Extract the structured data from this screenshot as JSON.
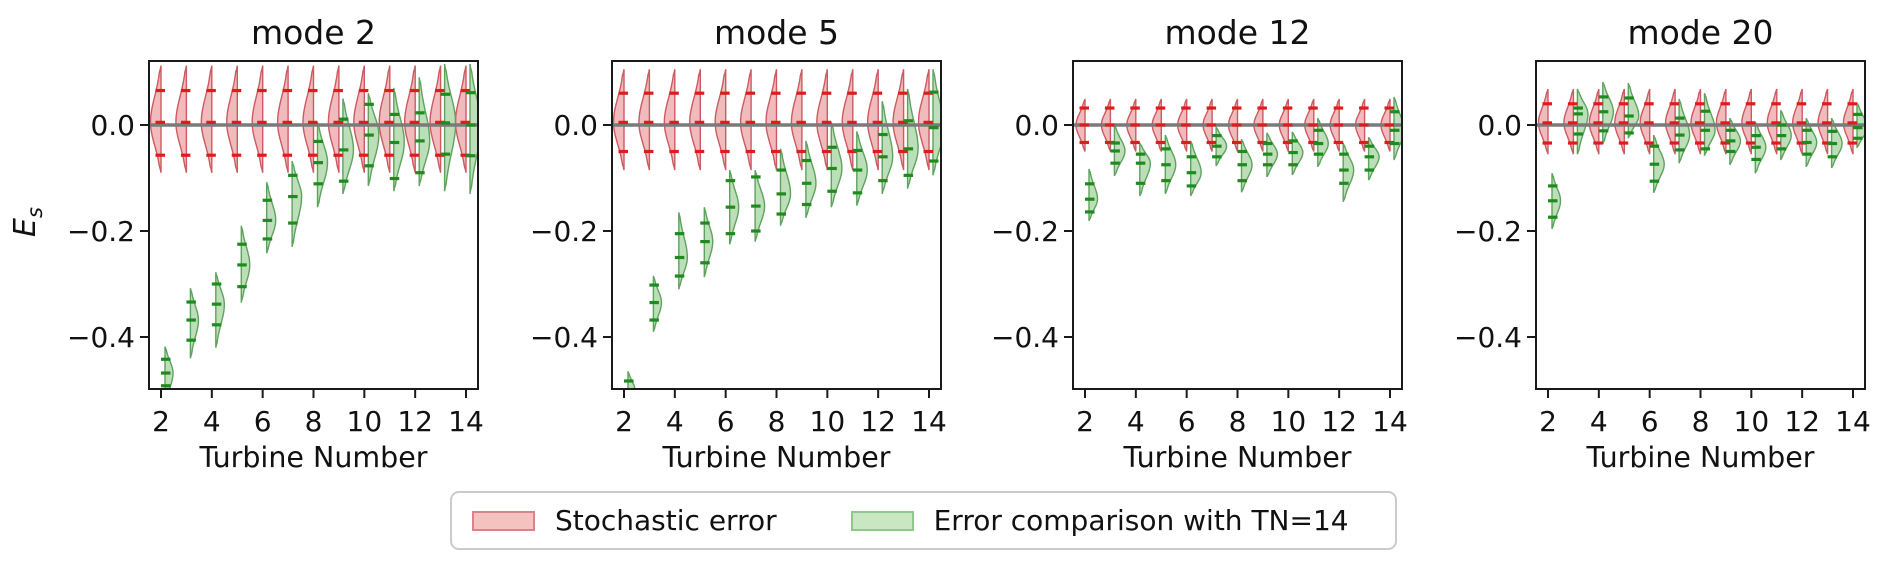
{
  "figure": {
    "background": "#ffffff",
    "ylabel_base": "E",
    "ylabel_sub": "s"
  },
  "chart_data": {
    "type": "violin",
    "xlabel": "Turbine Number",
    "ylabel": "E_s",
    "x_ticks": [
      2,
      4,
      6,
      8,
      10,
      12,
      14
    ],
    "y_ticks": [
      0.0,
      -0.2,
      -0.4
    ],
    "xlim": [
      1.5,
      14.5
    ],
    "ylim": [
      -0.498,
      0.121
    ],
    "grid": false,
    "zero_line": 0.0,
    "legend": {
      "position": "lower center",
      "items": [
        {
          "label": "Stochastic error",
          "fill": "#f5c2c2",
          "edge": "#dc8288"
        },
        {
          "label": "Error comparison with TN=14",
          "fill": "#c9e7c2",
          "edge": "#8cc98a"
        }
      ]
    },
    "colors": {
      "red_fill": "rgba(222,90,96,0.42)",
      "red_edge": "#cc5a60",
      "red_dash": "#dd1c1c",
      "green_fill": "rgba(106,183,100,0.45)",
      "green_edge": "#5da35c",
      "green_dash": "#1f8b1f",
      "zero_line": "#7a7a7a",
      "frame": "#1a1a1a",
      "text": "#111111"
    },
    "turbine_numbers": [
      2,
      3,
      4,
      5,
      6,
      7,
      8,
      9,
      10,
      11,
      12,
      13,
      14
    ],
    "subplots": [
      {
        "title": "mode 2",
        "red": {
          "lo": -0.09,
          "hi": 0.112,
          "q1": -0.057,
          "med": 0.005,
          "q3": 0.065,
          "w": 10.5
        },
        "green": [
          {
            "tn": 2,
            "lo": -0.53,
            "hi": -0.418,
            "q1": -0.492,
            "med": -0.468,
            "q3": -0.442,
            "w": 8
          },
          {
            "tn": 3,
            "lo": -0.44,
            "hi": -0.308,
            "q1": -0.406,
            "med": -0.368,
            "q3": -0.334,
            "w": 8
          },
          {
            "tn": 4,
            "lo": -0.42,
            "hi": -0.278,
            "q1": -0.377,
            "med": -0.338,
            "q3": -0.3,
            "w": 8.5
          },
          {
            "tn": 5,
            "lo": -0.335,
            "hi": -0.19,
            "q1": -0.305,
            "med": -0.264,
            "q3": -0.225,
            "w": 8.5
          },
          {
            "tn": 6,
            "lo": -0.242,
            "hi": -0.108,
            "q1": -0.215,
            "med": -0.18,
            "q3": -0.142,
            "w": 9
          },
          {
            "tn": 7,
            "lo": -0.23,
            "hi": -0.068,
            "q1": -0.185,
            "med": -0.135,
            "q3": -0.095,
            "w": 9.5
          },
          {
            "tn": 8,
            "lo": -0.155,
            "hi": 0.005,
            "q1": -0.111,
            "med": -0.071,
            "q3": -0.031,
            "w": 10
          },
          {
            "tn": 9,
            "lo": -0.13,
            "hi": 0.05,
            "q1": -0.106,
            "med": -0.047,
            "q3": 0.011,
            "w": 10.5
          },
          {
            "tn": 10,
            "lo": -0.115,
            "hi": 0.06,
            "q1": -0.077,
            "med": -0.019,
            "q3": 0.039,
            "w": 10.5
          },
          {
            "tn": 11,
            "lo": -0.125,
            "hi": 0.07,
            "q1": -0.101,
            "med": -0.033,
            "q3": 0.02,
            "w": 10.5
          },
          {
            "tn": 12,
            "lo": -0.115,
            "hi": 0.09,
            "q1": -0.09,
            "med": -0.03,
            "q3": 0.023,
            "w": 10.5
          },
          {
            "tn": 13,
            "lo": -0.125,
            "hi": 0.115,
            "q1": -0.055,
            "med": 0.004,
            "q3": 0.058,
            "w": 11
          },
          {
            "tn": 14,
            "lo": -0.13,
            "hi": 0.115,
            "q1": -0.058,
            "med": 0.0,
            "q3": 0.061,
            "w": 11
          }
        ]
      },
      {
        "title": "mode 5",
        "red": {
          "lo": -0.085,
          "hi": 0.105,
          "q1": -0.05,
          "med": 0.005,
          "q3": 0.06,
          "w": 10.5
        },
        "green": [
          {
            "tn": 2,
            "lo": -0.55,
            "hi": -0.465,
            "q1": -0.52,
            "med": -0.5,
            "q3": -0.483,
            "w": 7
          },
          {
            "tn": 3,
            "lo": -0.39,
            "hi": -0.285,
            "q1": -0.368,
            "med": -0.335,
            "q3": -0.302,
            "w": 8
          },
          {
            "tn": 4,
            "lo": -0.31,
            "hi": -0.165,
            "q1": -0.285,
            "med": -0.25,
            "q3": -0.205,
            "w": 8.5
          },
          {
            "tn": 5,
            "lo": -0.287,
            "hi": -0.155,
            "q1": -0.26,
            "med": -0.22,
            "q3": -0.185,
            "w": 8.5
          },
          {
            "tn": 6,
            "lo": -0.225,
            "hi": -0.085,
            "q1": -0.205,
            "med": -0.155,
            "q3": -0.105,
            "w": 9
          },
          {
            "tn": 7,
            "lo": -0.22,
            "hi": -0.085,
            "q1": -0.2,
            "med": -0.153,
            "q3": -0.098,
            "w": 9.5
          },
          {
            "tn": 8,
            "lo": -0.19,
            "hi": -0.045,
            "q1": -0.168,
            "med": -0.13,
            "q3": -0.085,
            "w": 10
          },
          {
            "tn": 9,
            "lo": -0.175,
            "hi": -0.03,
            "q1": -0.15,
            "med": -0.11,
            "q3": -0.067,
            "w": 10
          },
          {
            "tn": 10,
            "lo": -0.155,
            "hi": 0.005,
            "q1": -0.125,
            "med": -0.082,
            "q3": -0.042,
            "w": 10.5
          },
          {
            "tn": 11,
            "lo": -0.152,
            "hi": -0.012,
            "q1": -0.128,
            "med": -0.085,
            "q3": -0.048,
            "w": 10.5
          },
          {
            "tn": 12,
            "lo": -0.13,
            "hi": 0.045,
            "q1": -0.105,
            "med": -0.06,
            "q3": -0.018,
            "w": 10.5
          },
          {
            "tn": 13,
            "lo": -0.12,
            "hi": 0.068,
            "q1": -0.095,
            "med": -0.045,
            "q3": 0.008,
            "w": 10.5
          },
          {
            "tn": 14,
            "lo": -0.095,
            "hi": 0.105,
            "q1": -0.068,
            "med": -0.005,
            "q3": 0.062,
            "w": 11
          }
        ]
      },
      {
        "title": "mode 12",
        "red": {
          "lo": -0.05,
          "hi": 0.049,
          "q1": -0.033,
          "med": 0.0,
          "q3": 0.032,
          "w": 9
        },
        "green": [
          {
            "tn": 2,
            "lo": -0.181,
            "hi": -0.083,
            "q1": -0.164,
            "med": -0.14,
            "q3": -0.111,
            "w": 8.5
          },
          {
            "tn": 3,
            "lo": -0.096,
            "hi": 0.0,
            "q1": -0.072,
            "med": -0.049,
            "q3": -0.034,
            "w": 10.5
          },
          {
            "tn": 4,
            "lo": -0.134,
            "hi": -0.034,
            "q1": -0.11,
            "med": -0.072,
            "q3": -0.055,
            "w": 10.5
          },
          {
            "tn": 5,
            "lo": -0.13,
            "hi": -0.019,
            "q1": -0.105,
            "med": -0.075,
            "q3": -0.045,
            "w": 10.5
          },
          {
            "tn": 6,
            "lo": -0.134,
            "hi": -0.03,
            "q1": -0.115,
            "med": -0.09,
            "q3": -0.06,
            "w": 10.5
          },
          {
            "tn": 7,
            "lo": -0.077,
            "hi": -0.004,
            "q1": -0.06,
            "med": -0.04,
            "q3": -0.02,
            "w": 10.5
          },
          {
            "tn": 8,
            "lo": -0.127,
            "hi": -0.027,
            "q1": -0.105,
            "med": -0.075,
            "q3": -0.05,
            "w": 10.5
          },
          {
            "tn": 9,
            "lo": -0.098,
            "hi": -0.015,
            "q1": -0.075,
            "med": -0.055,
            "q3": -0.035,
            "w": 10.5
          },
          {
            "tn": 10,
            "lo": -0.094,
            "hi": -0.013,
            "q1": -0.075,
            "med": -0.052,
            "q3": -0.03,
            "w": 10.5
          },
          {
            "tn": 11,
            "lo": -0.079,
            "hi": 0.013,
            "q1": -0.055,
            "med": -0.035,
            "q3": -0.01,
            "w": 10.5
          },
          {
            "tn": 12,
            "lo": -0.145,
            "hi": -0.034,
            "q1": -0.11,
            "med": -0.085,
            "q3": -0.055,
            "w": 10.5
          },
          {
            "tn": 13,
            "lo": -0.104,
            "hi": -0.023,
            "q1": -0.085,
            "med": -0.06,
            "q3": -0.04,
            "w": 10.5
          },
          {
            "tn": 14,
            "lo": -0.066,
            "hi": 0.053,
            "q1": -0.035,
            "med": -0.01,
            "q3": 0.025,
            "w": 10.5
          }
        ]
      },
      {
        "title": "mode 20",
        "red": {
          "lo": -0.055,
          "hi": 0.068,
          "q1": -0.034,
          "med": 0.004,
          "q3": 0.04,
          "w": 9.5
        },
        "green": [
          {
            "tn": 2,
            "lo": -0.196,
            "hi": -0.091,
            "q1": -0.174,
            "med": -0.143,
            "q3": -0.115,
            "w": 8.5
          },
          {
            "tn": 3,
            "lo": -0.055,
            "hi": 0.068,
            "q1": -0.017,
            "med": 0.021,
            "q3": 0.032,
            "w": 10.5
          },
          {
            "tn": 4,
            "lo": -0.036,
            "hi": 0.081,
            "q1": -0.011,
            "med": 0.025,
            "q3": 0.053,
            "w": 10.5
          },
          {
            "tn": 5,
            "lo": -0.025,
            "hi": 0.079,
            "q1": -0.015,
            "med": 0.017,
            "q3": 0.051,
            "w": 10.5
          },
          {
            "tn": 6,
            "lo": -0.128,
            "hi": -0.019,
            "q1": -0.106,
            "med": -0.074,
            "q3": -0.04,
            "w": 10.5
          },
          {
            "tn": 7,
            "lo": -0.072,
            "hi": 0.049,
            "q1": -0.047,
            "med": -0.019,
            "q3": 0.013,
            "w": 10.5
          },
          {
            "tn": 8,
            "lo": -0.058,
            "hi": 0.06,
            "q1": -0.045,
            "med": -0.01,
            "q3": 0.026,
            "w": 10.5
          },
          {
            "tn": 9,
            "lo": -0.075,
            "hi": 0.013,
            "q1": -0.05,
            "med": -0.03,
            "q3": -0.01,
            "w": 10.5
          },
          {
            "tn": 10,
            "lo": -0.091,
            "hi": 0.006,
            "q1": -0.065,
            "med": -0.042,
            "q3": -0.02,
            "w": 10.5
          },
          {
            "tn": 11,
            "lo": -0.066,
            "hi": 0.028,
            "q1": -0.045,
            "med": -0.02,
            "q3": 0.0,
            "w": 10.5
          },
          {
            "tn": 12,
            "lo": -0.079,
            "hi": 0.013,
            "q1": -0.055,
            "med": -0.033,
            "q3": -0.01,
            "w": 10.5
          },
          {
            "tn": 13,
            "lo": -0.081,
            "hi": 0.013,
            "q1": -0.06,
            "med": -0.035,
            "q3": -0.012,
            "w": 10.5
          },
          {
            "tn": 14,
            "lo": -0.043,
            "hi": 0.042,
            "q1": -0.025,
            "med": -0.005,
            "q3": 0.02,
            "w": 10.5
          }
        ]
      }
    ]
  }
}
